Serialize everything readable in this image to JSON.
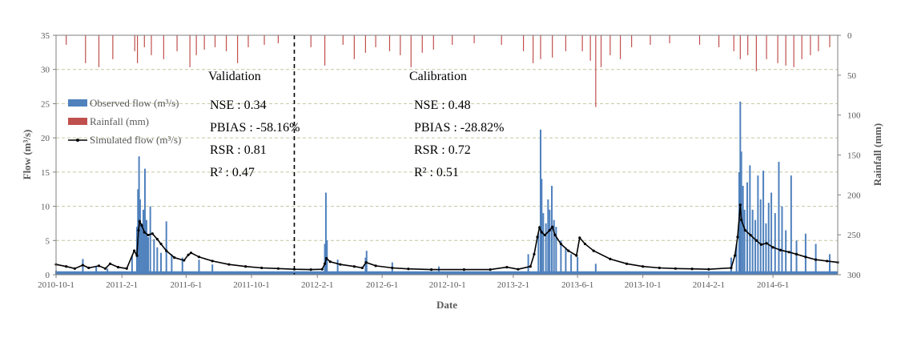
{
  "chart_data": {
    "type": "line",
    "xlabel": "Date",
    "ylabel": "Flow (m³/s)",
    "y2label": "Rainfall (mm)",
    "ylim": [
      0,
      35
    ],
    "y2lim": [
      0,
      300
    ],
    "y2_inverted": true,
    "y_ticks": [
      0,
      5,
      10,
      15,
      20,
      25,
      30,
      35
    ],
    "y2_ticks": [
      0,
      50,
      100,
      150,
      200,
      250,
      300
    ],
    "x_range": [
      "2010-10-01",
      "2014-09-30"
    ],
    "x_ticks": [
      "2010-10-1",
      "2011-2-1",
      "2011-6-1",
      "2011-10-1",
      "2012-2-1",
      "2012-6-1",
      "2012-10-1",
      "2013-2-1",
      "2013-6-1",
      "2013-10-1",
      "2014-2-1",
      "2014-6-1"
    ],
    "x_tick_dates": [
      "2010-10-01",
      "2011-02-01",
      "2011-06-01",
      "2011-10-01",
      "2012-02-01",
      "2012-06-01",
      "2012-10-01",
      "2013-02-01",
      "2013-06-01",
      "2013-10-01",
      "2014-02-01",
      "2014-06-01"
    ],
    "grid": "horizontal-dashed",
    "legend_position": "top-left",
    "legend": [
      "Observed flow (m³/s)",
      "Rainfall (mm)",
      "Simulated flow (m³/s)"
    ],
    "divider_date": "2011-12-20",
    "periods": [
      {
        "title": "Validation",
        "stats": [
          "NSE : 0.34",
          "PBIAS : -58.16%",
          "RSR : 0.81",
          "R² : 0.47"
        ]
      },
      {
        "title": "Calibration",
        "stats": [
          "NSE : 0.48",
          "PBIAS : -28.82%",
          "RSR : 0.72",
          "R² : 0.51"
        ]
      }
    ],
    "series": [
      {
        "name": "Observed flow (m³/s)",
        "style": "bars",
        "color": "#4f81bd",
        "baseline": 0.5,
        "points": [
          [
            "2010-10-01",
            0.6
          ],
          [
            "2010-11-20",
            2.3
          ],
          [
            "2010-12-15",
            1.2
          ],
          [
            "2011-01-05",
            0.9
          ],
          [
            "2011-02-20",
            2.8
          ],
          [
            "2011-03-01",
            7.0
          ],
          [
            "2011-03-03",
            12.5
          ],
          [
            "2011-03-05",
            17.3
          ],
          [
            "2011-03-07",
            11.0
          ],
          [
            "2011-03-10",
            7.5
          ],
          [
            "2011-03-13",
            9.5
          ],
          [
            "2011-03-16",
            15.5
          ],
          [
            "2011-03-19",
            8.0
          ],
          [
            "2011-03-22",
            5.5
          ],
          [
            "2011-03-26",
            10.0
          ],
          [
            "2011-04-02",
            5.2
          ],
          [
            "2011-04-08",
            4.0
          ],
          [
            "2011-04-15",
            3.2
          ],
          [
            "2011-04-25",
            7.8
          ],
          [
            "2011-05-05",
            3.0
          ],
          [
            "2011-05-25",
            2.5
          ],
          [
            "2011-06-25",
            2.2
          ],
          [
            "2011-07-20",
            1.5
          ],
          [
            "2012-02-15",
            4.5
          ],
          [
            "2012-02-17",
            12.0
          ],
          [
            "2012-02-19",
            5.0
          ],
          [
            "2012-03-10",
            2.2
          ],
          [
            "2012-05-01",
            2.5
          ],
          [
            "2012-05-03",
            3.5
          ],
          [
            "2012-06-20",
            1.8
          ],
          [
            "2012-09-15",
            1.2
          ],
          [
            "2013-03-01",
            3.0
          ],
          [
            "2013-03-20",
            6.0
          ],
          [
            "2013-03-24",
            21.2
          ],
          [
            "2013-03-26",
            14.0
          ],
          [
            "2013-03-29",
            9.0
          ],
          [
            "2013-04-03",
            7.5
          ],
          [
            "2013-04-07",
            11.0
          ],
          [
            "2013-04-10",
            9.5
          ],
          [
            "2013-04-14",
            13.0
          ],
          [
            "2013-04-18",
            8.0
          ],
          [
            "2013-04-22",
            7.0
          ],
          [
            "2013-05-01",
            5.0
          ],
          [
            "2013-05-10",
            4.0
          ],
          [
            "2013-05-20",
            3.0
          ],
          [
            "2013-06-01",
            2.6
          ],
          [
            "2013-07-05",
            1.6
          ],
          [
            "2014-03-15",
            2.5
          ],
          [
            "2014-03-25",
            4.5
          ],
          [
            "2014-03-30",
            15.0
          ],
          [
            "2014-04-01",
            25.3
          ],
          [
            "2014-04-03",
            18.0
          ],
          [
            "2014-04-06",
            13.0
          ],
          [
            "2014-04-09",
            9.5
          ],
          [
            "2014-04-14",
            13.5
          ],
          [
            "2014-04-19",
            16.0
          ],
          [
            "2014-04-24",
            9.5
          ],
          [
            "2014-04-29",
            8.0
          ],
          [
            "2014-05-04",
            14.5
          ],
          [
            "2014-05-09",
            11.0
          ],
          [
            "2014-05-14",
            15.2
          ],
          [
            "2014-05-19",
            7.5
          ],
          [
            "2014-05-24",
            10.5
          ],
          [
            "2014-05-29",
            12.0
          ],
          [
            "2014-06-05",
            9.0
          ],
          [
            "2014-06-12",
            16.5
          ],
          [
            "2014-06-18",
            10.0
          ],
          [
            "2014-06-25",
            6.5
          ],
          [
            "2014-07-05",
            14.5
          ],
          [
            "2014-07-15",
            5.0
          ],
          [
            "2014-08-01",
            6.0
          ],
          [
            "2014-08-20",
            4.5
          ],
          [
            "2014-09-15",
            3.0
          ]
        ]
      },
      {
        "name": "Rainfall (mm)",
        "style": "bars-from-top",
        "color": "#c0504d",
        "points": [
          [
            "2010-10-20",
            12
          ],
          [
            "2010-11-25",
            35
          ],
          [
            "2010-12-20",
            40
          ],
          [
            "2011-01-15",
            30
          ],
          [
            "2011-02-25",
            20
          ],
          [
            "2011-03-02",
            35
          ],
          [
            "2011-03-15",
            15
          ],
          [
            "2011-03-28",
            25
          ],
          [
            "2011-04-20",
            30
          ],
          [
            "2011-05-15",
            20
          ],
          [
            "2011-06-08",
            40
          ],
          [
            "2011-06-20",
            25
          ],
          [
            "2011-07-05",
            18
          ],
          [
            "2011-07-25",
            15
          ],
          [
            "2011-08-15",
            20
          ],
          [
            "2011-09-05",
            35
          ],
          [
            "2011-09-25",
            15
          ],
          [
            "2011-10-25",
            12
          ],
          [
            "2011-11-20",
            10
          ],
          [
            "2012-01-20",
            15
          ],
          [
            "2012-02-15",
            38
          ],
          [
            "2012-03-20",
            12
          ],
          [
            "2012-04-10",
            30
          ],
          [
            "2012-05-01",
            22
          ],
          [
            "2012-05-20",
            15
          ],
          [
            "2012-06-15",
            20
          ],
          [
            "2012-07-05",
            25
          ],
          [
            "2012-07-25",
            40
          ],
          [
            "2012-08-15",
            22
          ],
          [
            "2012-09-05",
            18
          ],
          [
            "2012-10-10",
            12
          ],
          [
            "2012-11-20",
            10
          ],
          [
            "2013-01-10",
            12
          ],
          [
            "2013-02-20",
            20
          ],
          [
            "2013-03-10",
            35
          ],
          [
            "2013-03-24",
            30
          ],
          [
            "2013-04-15",
            28
          ],
          [
            "2013-05-10",
            20
          ],
          [
            "2013-06-10",
            20
          ],
          [
            "2013-06-25",
            32
          ],
          [
            "2013-07-05",
            90
          ],
          [
            "2013-07-15",
            40
          ],
          [
            "2013-08-01",
            25
          ],
          [
            "2013-08-20",
            30
          ],
          [
            "2013-09-10",
            15
          ],
          [
            "2013-10-15",
            12
          ],
          [
            "2013-11-20",
            10
          ],
          [
            "2014-01-15",
            12
          ],
          [
            "2014-02-20",
            15
          ],
          [
            "2014-03-20",
            20
          ],
          [
            "2014-04-01",
            30
          ],
          [
            "2014-04-15",
            25
          ],
          [
            "2014-05-01",
            45
          ],
          [
            "2014-05-20",
            30
          ],
          [
            "2014-06-10",
            35
          ],
          [
            "2014-06-25",
            38
          ],
          [
            "2014-07-10",
            40
          ],
          [
            "2014-07-25",
            30
          ],
          [
            "2014-08-10",
            25
          ],
          [
            "2014-08-25",
            20
          ],
          [
            "2014-09-15",
            15
          ]
        ]
      },
      {
        "name": "Simulated flow (m³/s)",
        "style": "line-markers",
        "color": "#000000",
        "points": [
          [
            "2010-10-01",
            1.5
          ],
          [
            "2010-10-20",
            1.2
          ],
          [
            "2010-11-05",
            0.9
          ],
          [
            "2010-11-20",
            1.4
          ],
          [
            "2010-12-01",
            1.0
          ],
          [
            "2010-12-20",
            1.3
          ],
          [
            "2011-01-01",
            0.9
          ],
          [
            "2011-01-10",
            1.6
          ],
          [
            "2011-01-25",
            1.1
          ],
          [
            "2011-02-10",
            0.9
          ],
          [
            "2011-02-24",
            3.5
          ],
          [
            "2011-03-01",
            2.8
          ],
          [
            "2011-03-04",
            6.5
          ],
          [
            "2011-03-06",
            7.8
          ],
          [
            "2011-03-10",
            7.2
          ],
          [
            "2011-03-15",
            6.2
          ],
          [
            "2011-03-22",
            5.8
          ],
          [
            "2011-03-30",
            6.0
          ],
          [
            "2011-04-08",
            5.2
          ],
          [
            "2011-04-15",
            4.5
          ],
          [
            "2011-04-25",
            3.5
          ],
          [
            "2011-05-10",
            2.5
          ],
          [
            "2011-05-28",
            2.1
          ],
          [
            "2011-06-05",
            2.9
          ],
          [
            "2011-06-10",
            3.2
          ],
          [
            "2011-06-25",
            2.6
          ],
          [
            "2011-07-20",
            2.0
          ],
          [
            "2011-08-20",
            1.5
          ],
          [
            "2011-09-20",
            1.2
          ],
          [
            "2011-10-20",
            1.0
          ],
          [
            "2011-11-20",
            0.9
          ],
          [
            "2011-12-20",
            0.8
          ],
          [
            "2012-01-20",
            0.75
          ],
          [
            "2012-02-10",
            0.8
          ],
          [
            "2012-02-15",
            1.6
          ],
          [
            "2012-02-18",
            2.4
          ],
          [
            "2012-02-25",
            1.9
          ],
          [
            "2012-03-15",
            1.5
          ],
          [
            "2012-04-10",
            1.2
          ],
          [
            "2012-04-25",
            1.0
          ],
          [
            "2012-05-02",
            1.8
          ],
          [
            "2012-05-20",
            1.3
          ],
          [
            "2012-06-20",
            1.0
          ],
          [
            "2012-07-20",
            0.85
          ],
          [
            "2012-09-01",
            0.75
          ],
          [
            "2012-11-01",
            0.75
          ],
          [
            "2012-12-20",
            0.75
          ],
          [
            "2013-01-20",
            1.1
          ],
          [
            "2013-02-10",
            0.8
          ],
          [
            "2013-03-05",
            1.2
          ],
          [
            "2013-03-12",
            3.0
          ],
          [
            "2013-03-18",
            5.5
          ],
          [
            "2013-03-22",
            6.9
          ],
          [
            "2013-03-26",
            6.2
          ],
          [
            "2013-04-01",
            5.8
          ],
          [
            "2013-04-10",
            6.5
          ],
          [
            "2013-04-15",
            7.0
          ],
          [
            "2013-04-20",
            5.8
          ],
          [
            "2013-05-01",
            4.5
          ],
          [
            "2013-05-15",
            3.5
          ],
          [
            "2013-05-30",
            2.8
          ],
          [
            "2013-06-05",
            5.4
          ],
          [
            "2013-06-15",
            4.5
          ],
          [
            "2013-07-01",
            3.5
          ],
          [
            "2013-08-01",
            2.3
          ],
          [
            "2013-09-01",
            1.6
          ],
          [
            "2013-10-01",
            1.2
          ],
          [
            "2013-11-01",
            1.0
          ],
          [
            "2013-12-01",
            0.9
          ],
          [
            "2014-01-01",
            0.85
          ],
          [
            "2014-02-01",
            0.8
          ],
          [
            "2014-03-15",
            1.0
          ],
          [
            "2014-03-22",
            2.8
          ],
          [
            "2014-03-27",
            5.5
          ],
          [
            "2014-04-01",
            10.2
          ],
          [
            "2014-04-03",
            8.0
          ],
          [
            "2014-04-10",
            6.5
          ],
          [
            "2014-04-20",
            5.8
          ],
          [
            "2014-05-01",
            5.0
          ],
          [
            "2014-05-10",
            4.4
          ],
          [
            "2014-05-20",
            4.6
          ],
          [
            "2014-06-01",
            4.0
          ],
          [
            "2014-06-15",
            3.6
          ],
          [
            "2014-07-01",
            3.3
          ],
          [
            "2014-07-15",
            3.0
          ],
          [
            "2014-08-01",
            2.6
          ],
          [
            "2014-08-20",
            2.2
          ],
          [
            "2014-09-10",
            2.0
          ],
          [
            "2014-09-30",
            1.8
          ]
        ]
      }
    ]
  }
}
